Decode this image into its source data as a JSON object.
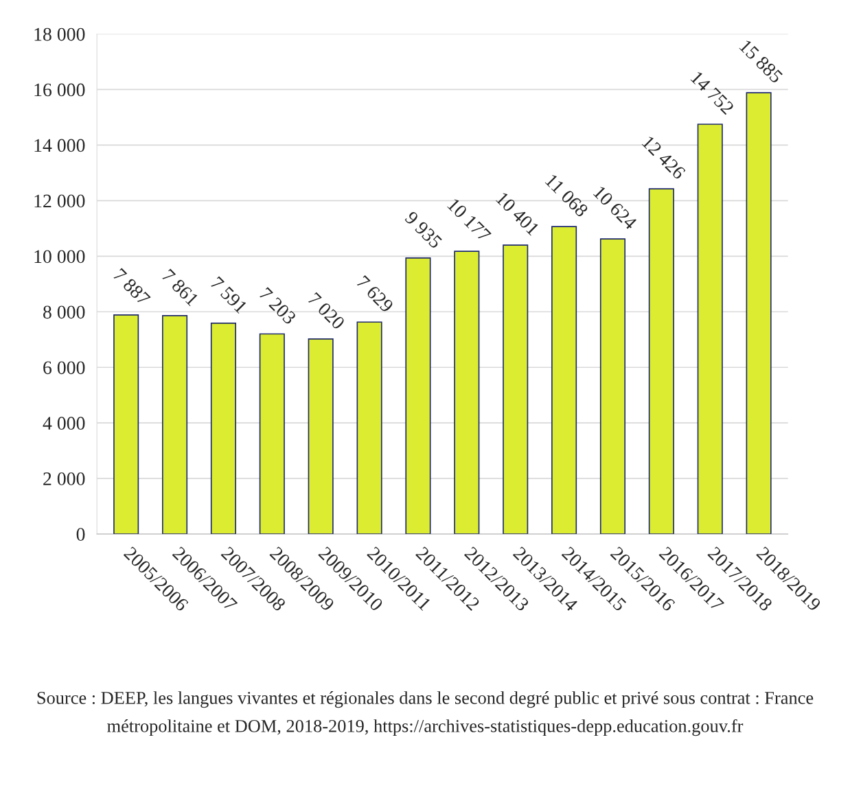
{
  "chart_data": {
    "type": "bar",
    "categories": [
      "2005/2006",
      "2006/2007",
      "2007/2008",
      "2008/2009",
      "2009/2010",
      "2010/2011",
      "2011/2012",
      "2012/2013",
      "2013/2014",
      "2014/2015",
      "2015/2016",
      "2016/2017",
      "2017/2018",
      "2018/2019"
    ],
    "values": [
      7887,
      7861,
      7591,
      7203,
      7020,
      7629,
      9935,
      10177,
      10401,
      11068,
      10624,
      12426,
      14752,
      15885
    ],
    "value_labels": [
      "7 887",
      "7 861",
      "7 591",
      "7 203",
      "7 020",
      "7 629",
      "9 935",
      "10 177",
      "10 401",
      "11 068",
      "10 624",
      "12 426",
      "14 752",
      "15 885"
    ],
    "color": "#dced31",
    "ylim": [
      0,
      18000
    ],
    "yticks": [
      0,
      {
        "value": 2000,
        "label": "2 000"
      },
      {
        "value": 4000,
        "label": "4 000"
      },
      {
        "value": 6000,
        "label": "6 000"
      },
      {
        "value": 8000,
        "label": "8 000"
      },
      {
        "value": 10000,
        "label": "10 000"
      },
      {
        "value": 12000,
        "label": "12 000"
      },
      {
        "value": 14000,
        "label": "14 000"
      },
      {
        "value": 16000,
        "label": "16 000"
      },
      {
        "value": 18000,
        "label": "18 000"
      }
    ],
    "grid": "y",
    "annotations": [
      "Source : DEEP, les langues vivantes et régionales dans le second degré public et privé sous contrat : France métropolitaine et DOM, 2018-2019, https://archives-statistiques-depp.education.gouv.fr"
    ]
  }
}
